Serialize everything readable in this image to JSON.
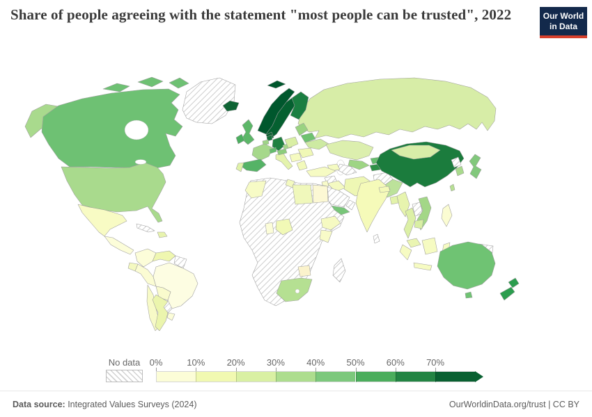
{
  "header": {
    "title": "Share of people agreeing with the statement \"most people can be trusted\", 2022",
    "logo_line1": "Our World",
    "logo_line2": "in Data",
    "logo_bg": "#13294b",
    "logo_accent": "#d8402c"
  },
  "legend": {
    "no_data_label": "No data",
    "tick_labels": [
      "0%",
      "10%",
      "20%",
      "30%",
      "40%",
      "50%",
      "60%",
      "70%"
    ],
    "colors": [
      "#fcfdd7",
      "#f1f9b1",
      "#d9f0a3",
      "#addd8e",
      "#7cc87c",
      "#4bad5c",
      "#238443",
      "#096031"
    ]
  },
  "footer": {
    "source_label": "Data source:",
    "source_value": " Integrated Values Surveys (2024)",
    "right_text": "OurWorldinData.org/trust | CC BY"
  },
  "map": {
    "ocean_color": "#ffffff",
    "border_color": "#9c9c9c",
    "fills": {
      "canada": "#6ec173",
      "usa": "#a9da8d",
      "greenland": "no-data",
      "mexico": "#f8fbc4",
      "central-america": "#fcfdd9",
      "cuba": "no-data",
      "hispaniola": "#e8f4ae",
      "colombia": "#fcfdd9",
      "venezuela": "#eff7b0",
      "guyanas": "no-data",
      "ecuador": "#f4f9c0",
      "peru": "#fbfcd3",
      "brazil": "#fdfde2",
      "bolivia": "#f9fbcd",
      "paraguay": "no-data",
      "chile": "#f7fac7",
      "argentina": "#ebf5ad",
      "uruguay": "#fcfdd9",
      "iceland": "#0e6434",
      "svalbard": "#00572d",
      "norway": "#00572d",
      "sweden": "#056030",
      "finland": "#1a7e41",
      "denmark": "#0a6131",
      "uk": "#5cb768",
      "ireland": "#4caf5f",
      "netherlands": "#14703a",
      "belgium": "#9ed586",
      "germany": "#1f8041",
      "france": "#a6d88b",
      "spain": "#55b366",
      "portugal": "#e0f2a8",
      "italy": "#e4f3ac",
      "switzerland": "#63bc6c",
      "austria": "#8ccd7c",
      "czechia": "#a5d88a",
      "poland": "#d9efa4",
      "baltics": "#9ad281",
      "belarus": "#6ec26f",
      "ukraine": "#cdeaa2",
      "serbia-region": "#f5fac0",
      "balkans": "#f0f8b6",
      "greece": "#f2f9bb",
      "russia": "#d7eda7",
      "kazakhstan": "#dcefae",
      "mongolia": "#d8eda8",
      "uzbekistan": "#9ed584",
      "turkmenistan": "no-data",
      "kyrgyzstan": "#66bd6d",
      "tajikistan": "#2f9148",
      "caucasus": "#f4fac1",
      "turkey": "#f6fbc3",
      "syria": "no-data",
      "iraq": "#f4fac1",
      "iran": "#eef7b4",
      "afghanistan": "no-data",
      "pakistan": "#bce29a",
      "jordan-israel": "#f8fbca",
      "saudi-arabia": "no-data",
      "yemen": "#78c679",
      "oman": "no-data",
      "africa-other": "no-data",
      "morocco": "#f7fbc6",
      "tunisia": "#f3f9bf",
      "libya": "#f0f8bb",
      "egypt": "#fcf8d4",
      "ghana": "#fcfdd8",
      "nigeria": "#f1f9b6",
      "ethiopia": "#f6fac2",
      "kenya": "#f8fbc8",
      "zimbabwe": "#fbf3cc",
      "south-africa": "#b5e092",
      "madagascar": "no-data",
      "india": "#f5fab9",
      "nepal": "#f3f9b8",
      "bangladesh": "#e3f3aa",
      "sri-lanka": "no-data",
      "myanmar": "#e7f4ae",
      "thailand": "#dcf0a6",
      "laos": "no-data",
      "vietnam": "#a3d787",
      "cambodia": "#d9efa3",
      "malaysia": "#eaf5b2",
      "indonesia": "#f6fbc2",
      "philippines": "#fbfcd2",
      "papua-new-guinea": "no-data",
      "china": "#1b7c3d",
      "mongolia2": "#d8eda8",
      "taiwan": "#b7e093",
      "north-korea": "no-data",
      "south-korea": "#a9da8d",
      "japan": "#82c87c",
      "australia": "#6fc373",
      "new-zealand": "#2b9d4e"
    }
  },
  "chart_data": {
    "type": "heatmap",
    "subtype": "choropleth-world-map",
    "title": "Share of people agreeing with the statement \"most people can be trusted\", 2022",
    "legend_position": "bottom",
    "bins": [
      "0-10%",
      "10-20%",
      "20-30%",
      "30-40%",
      "40-50%",
      "50-60%",
      "60-70%",
      "70%+",
      "No data"
    ],
    "bin_colors": [
      "#fcfdd7",
      "#f1f9b1",
      "#d9f0a3",
      "#addd8e",
      "#7cc87c",
      "#4bad5c",
      "#238443",
      "#096031",
      "hatched"
    ],
    "countries": [
      {
        "name": "Norway",
        "bin": "70%+"
      },
      {
        "name": "Sweden",
        "bin": "70%+"
      },
      {
        "name": "Denmark",
        "bin": "70%+"
      },
      {
        "name": "Finland",
        "bin": "60-70%"
      },
      {
        "name": "Iceland",
        "bin": "60-70%"
      },
      {
        "name": "Netherlands",
        "bin": "60-70%"
      },
      {
        "name": "China",
        "bin": "60-70%"
      },
      {
        "name": "Germany",
        "bin": "60-70%"
      },
      {
        "name": "New Zealand",
        "bin": "50-60%"
      },
      {
        "name": "Spain",
        "bin": "50-60%"
      },
      {
        "name": "Canada",
        "bin": "40-50%"
      },
      {
        "name": "Australia",
        "bin": "40-50%"
      },
      {
        "name": "United Kingdom",
        "bin": "40-50%"
      },
      {
        "name": "Ireland",
        "bin": "40-50%"
      },
      {
        "name": "Switzerland",
        "bin": "40-50%"
      },
      {
        "name": "Belarus",
        "bin": "40-50%"
      },
      {
        "name": "Japan",
        "bin": "40-50%"
      },
      {
        "name": "Yemen",
        "bin": "40-50%"
      },
      {
        "name": "Kyrgyzstan",
        "bin": "40-50%"
      },
      {
        "name": "Tajikistan",
        "bin": "50-60%"
      },
      {
        "name": "United States",
        "bin": "30-40%"
      },
      {
        "name": "France",
        "bin": "30-40%"
      },
      {
        "name": "South Korea",
        "bin": "30-40%"
      },
      {
        "name": "Vietnam",
        "bin": "30-40%"
      },
      {
        "name": "Pakistan",
        "bin": "30-40%"
      },
      {
        "name": "South Africa",
        "bin": "30-40%"
      },
      {
        "name": "Uzbekistan",
        "bin": "30-40%"
      },
      {
        "name": "Belgium",
        "bin": "30-40%"
      },
      {
        "name": "Czechia",
        "bin": "30-40%"
      },
      {
        "name": "Austria",
        "bin": "30-40%"
      },
      {
        "name": "Estonia/Latvia/Lithuania",
        "bin": "30-40%"
      },
      {
        "name": "Taiwan",
        "bin": "30-40%"
      },
      {
        "name": "Russia",
        "bin": "20-30%"
      },
      {
        "name": "Kazakhstan",
        "bin": "20-30%"
      },
      {
        "name": "Mongolia",
        "bin": "20-30%"
      },
      {
        "name": "Ukraine",
        "bin": "20-30%"
      },
      {
        "name": "Poland",
        "bin": "20-30%"
      },
      {
        "name": "Italy",
        "bin": "20-30%"
      },
      {
        "name": "Portugal",
        "bin": "20-30%"
      },
      {
        "name": "Thailand",
        "bin": "20-30%"
      },
      {
        "name": "Myanmar",
        "bin": "20-30%"
      },
      {
        "name": "Cambodia",
        "bin": "20-30%"
      },
      {
        "name": "Bangladesh",
        "bin": "20-30%"
      },
      {
        "name": "Dominican Republic",
        "bin": "20-30%"
      },
      {
        "name": "Mexico",
        "bin": "10-20%"
      },
      {
        "name": "Argentina",
        "bin": "10-20%"
      },
      {
        "name": "Venezuela",
        "bin": "10-20%"
      },
      {
        "name": "Chile",
        "bin": "10-20%"
      },
      {
        "name": "Morocco",
        "bin": "10-20%"
      },
      {
        "name": "Tunisia",
        "bin": "10-20%"
      },
      {
        "name": "Libya",
        "bin": "10-20%"
      },
      {
        "name": "Nigeria",
        "bin": "10-20%"
      },
      {
        "name": "Ethiopia",
        "bin": "10-20%"
      },
      {
        "name": "Kenya",
        "bin": "10-20%"
      },
      {
        "name": "Turkey",
        "bin": "10-20%"
      },
      {
        "name": "Iran",
        "bin": "10-20%"
      },
      {
        "name": "Iraq",
        "bin": "10-20%"
      },
      {
        "name": "India",
        "bin": "10-20%"
      },
      {
        "name": "Nepal",
        "bin": "10-20%"
      },
      {
        "name": "Greece",
        "bin": "10-20%"
      },
      {
        "name": "Indonesia",
        "bin": "10-20%"
      },
      {
        "name": "Malaysia",
        "bin": "10-20%"
      },
      {
        "name": "Brazil",
        "bin": "0-10%"
      },
      {
        "name": "Colombia",
        "bin": "0-10%"
      },
      {
        "name": "Peru",
        "bin": "0-10%"
      },
      {
        "name": "Ecuador",
        "bin": "0-10%"
      },
      {
        "name": "Bolivia",
        "bin": "0-10%"
      },
      {
        "name": "Uruguay",
        "bin": "0-10%"
      },
      {
        "name": "Philippines",
        "bin": "0-10%"
      },
      {
        "name": "Ghana",
        "bin": "0-10%"
      },
      {
        "name": "Egypt",
        "bin": "0-10%"
      },
      {
        "name": "Zimbabwe",
        "bin": "0-10%"
      },
      {
        "name": "Greenland",
        "bin": "No data"
      },
      {
        "name": "Algeria",
        "bin": "No data"
      },
      {
        "name": "Saudi Arabia",
        "bin": "No data"
      },
      {
        "name": "Afghanistan",
        "bin": "No data"
      },
      {
        "name": "North Korea",
        "bin": "No data"
      },
      {
        "name": "Madagascar",
        "bin": "No data"
      },
      {
        "name": "Papua New Guinea",
        "bin": "No data"
      },
      {
        "name": "Paraguay",
        "bin": "No data"
      },
      {
        "name": "Cuba",
        "bin": "No data"
      },
      {
        "name": "Sri Lanka",
        "bin": "No data"
      },
      {
        "name": "Laos",
        "bin": "No data"
      },
      {
        "name": "Syria",
        "bin": "No data"
      },
      {
        "name": "Turkmenistan",
        "bin": "No data"
      },
      {
        "name": "Most of central Africa",
        "bin": "No data"
      }
    ]
  }
}
